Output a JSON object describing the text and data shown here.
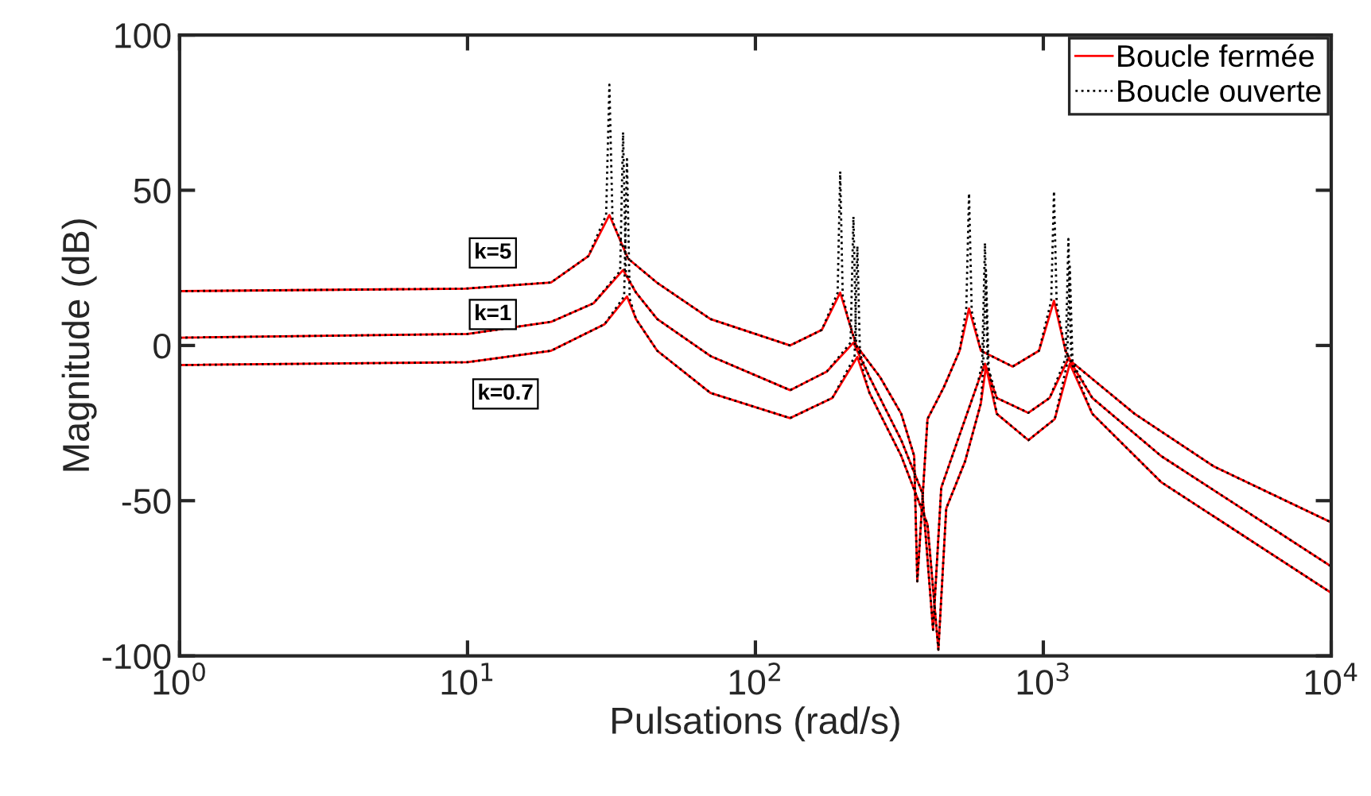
{
  "chart_data": {
    "type": "line",
    "xlabel": "Pulsations (rad/s)",
    "ylabel": "Magnitude (dB)",
    "log": "x",
    "grid": false,
    "legend": "top right",
    "xlim": [
      1,
      10000
    ],
    "xticks": [
      {
        "value": 1,
        "label": "10$^{0}$"
      },
      {
        "value": 10,
        "label": "10$^{1}$"
      },
      {
        "value": 100,
        "label": "10$^{2}$"
      },
      {
        "value": 1000,
        "label": "10$^{3}$"
      },
      {
        "value": 10000,
        "label": "10$^{4}$"
      }
    ],
    "ylim": [
      -100,
      100
    ],
    "yticks": [
      -100,
      -50,
      0,
      50,
      100
    ],
    "annotations": [
      "k=5",
      "k=1",
      "k=0.7"
    ],
    "series": [
      {
        "name": "Boucle fermée",
        "color": "#ff0000",
        "line_style": "solid",
        "x": [
          1,
          9.8,
          19.5,
          26.3,
          31.1,
          36.1,
          45.4,
          69.8,
          132,
          170,
          197,
          210,
          224,
          271,
          321,
          356,
          365,
          396,
          451,
          512,
          552,
          607,
          782,
          966,
          1089,
          1194,
          1247,
          2075,
          3917,
          10000
        ],
        "values": [
          17.5,
          18.3,
          20.3,
          28.8,
          42,
          28,
          20.3,
          8.5,
          0,
          5,
          17,
          8.5,
          0,
          -10.2,
          -22,
          -35.6,
          -76,
          -23.7,
          -13.5,
          -1.7,
          11.9,
          -1.7,
          -6.8,
          -1.7,
          14.4,
          -1.7,
          -5.1,
          -22,
          -39,
          -57
        ]
      },
      {
        "color": "#ff0000",
        "line_style": "solid",
        "x": [
          1,
          10,
          19.5,
          27.4,
          34.7,
          38.5,
          45.6,
          69.8,
          132,
          177,
          219,
          249,
          321,
          380,
          414,
          442,
          512,
          593,
          627,
          689,
          887,
          1052,
          1222,
          1479,
          2564,
          10000
        ],
        "values": [
          2.5,
          3.7,
          7.6,
          13.6,
          24.3,
          17,
          8.5,
          -3.4,
          -14.4,
          -8.4,
          0.9,
          -10.2,
          -30.5,
          -47.5,
          -91.6,
          -45.8,
          -28.8,
          -11.9,
          -5.9,
          -16.9,
          -21.7,
          -16.9,
          -4.2,
          -16.9,
          -35.6,
          -71.2
        ]
      },
      {
        "color": "#ff0000",
        "line_style": "solid",
        "x": [
          1,
          10,
          19.5,
          29.9,
          35.8,
          38.5,
          45.6,
          69.8,
          132,
          185,
          226,
          249,
          321,
          396,
          432,
          460,
          535,
          607,
          632,
          689,
          887,
          1096,
          1236,
          1479,
          2564,
          10000
        ],
        "values": [
          -6.3,
          -5.4,
          -1.7,
          6.8,
          15.8,
          8.5,
          -1.7,
          -15.3,
          -23.4,
          -16.9,
          -3.7,
          -15.3,
          -35.6,
          -57.6,
          -98,
          -52.5,
          -37.3,
          -18.6,
          -6.8,
          -22,
          -30.5,
          -23.7,
          -5.9,
          -22,
          -44,
          -79.7
        ]
      },
      {
        "name": "Boucle ouverte",
        "color": "#000000",
        "line_style": "dotted",
        "x": [
          1,
          9.8,
          19.5,
          26.3,
          30.3,
          31.1,
          31.9,
          36.1,
          45.4,
          69.8,
          132,
          170,
          193,
          197,
          201,
          210,
          224,
          271,
          321,
          356,
          365,
          396,
          451,
          512,
          540,
          552,
          564,
          607,
          782,
          966,
          1065,
          1089,
          1113,
          1194,
          1247,
          2075,
          3917,
          10000
        ],
        "values": [
          17.5,
          18.3,
          20.3,
          28.8,
          42,
          84,
          40,
          28,
          20.3,
          8.5,
          0,
          5,
          17,
          56,
          16,
          8.5,
          0,
          -10.2,
          -22,
          -35.6,
          -76,
          -23.7,
          -13.5,
          -1.7,
          11.9,
          49,
          11,
          -1.7,
          -6.8,
          -1.7,
          14.4,
          49.7,
          13,
          -1.7,
          -5.1,
          -22,
          -39,
          -57
        ]
      },
      {
        "color": "#000000",
        "line_style": "dotted",
        "x": [
          1,
          10,
          19.5,
          27.4,
          33.9,
          34.7,
          35.5,
          38.5,
          45.6,
          69.8,
          132,
          177,
          214,
          219,
          224,
          249,
          321,
          380,
          414,
          442,
          512,
          593,
          613,
          627,
          641,
          689,
          887,
          1052,
          1195,
          1222,
          1250,
          1479,
          2564,
          10000
        ],
        "values": [
          2.5,
          3.7,
          7.6,
          13.6,
          24,
          68.7,
          23,
          17,
          8.5,
          -3.4,
          -14.4,
          -8.4,
          0.9,
          41.5,
          0,
          -10.2,
          -30.5,
          -47.5,
          -91.6,
          -45.8,
          -28.8,
          -11.9,
          -5.9,
          33,
          -6.5,
          -16.9,
          -21.7,
          -16.9,
          -4.2,
          34.3,
          -5,
          -16.9,
          -35.6,
          -71.2
        ]
      },
      {
        "color": "#000000",
        "line_style": "dotted",
        "x": [
          1,
          10,
          19.5,
          29.9,
          35,
          35.8,
          36.6,
          38.5,
          45.6,
          69.8,
          132,
          185,
          221,
          226,
          231,
          249,
          321,
          396,
          432,
          460,
          535,
          607,
          618,
          632,
          646,
          689,
          887,
          1096,
          1209,
          1236,
          1264,
          1479,
          2564,
          10000
        ],
        "values": [
          -6.3,
          -5.4,
          -1.7,
          6.8,
          15.8,
          60,
          15,
          8.5,
          -1.7,
          -15.3,
          -23.4,
          -16.9,
          -3.7,
          32,
          -4.5,
          -15.3,
          -35.6,
          -57.6,
          -98,
          -52.5,
          -37.3,
          -18.6,
          -6.8,
          24.3,
          -7.5,
          -22,
          -30.5,
          -23.7,
          -5.9,
          25.4,
          -6.5,
          -22,
          -44,
          -79.7
        ]
      }
    ]
  }
}
